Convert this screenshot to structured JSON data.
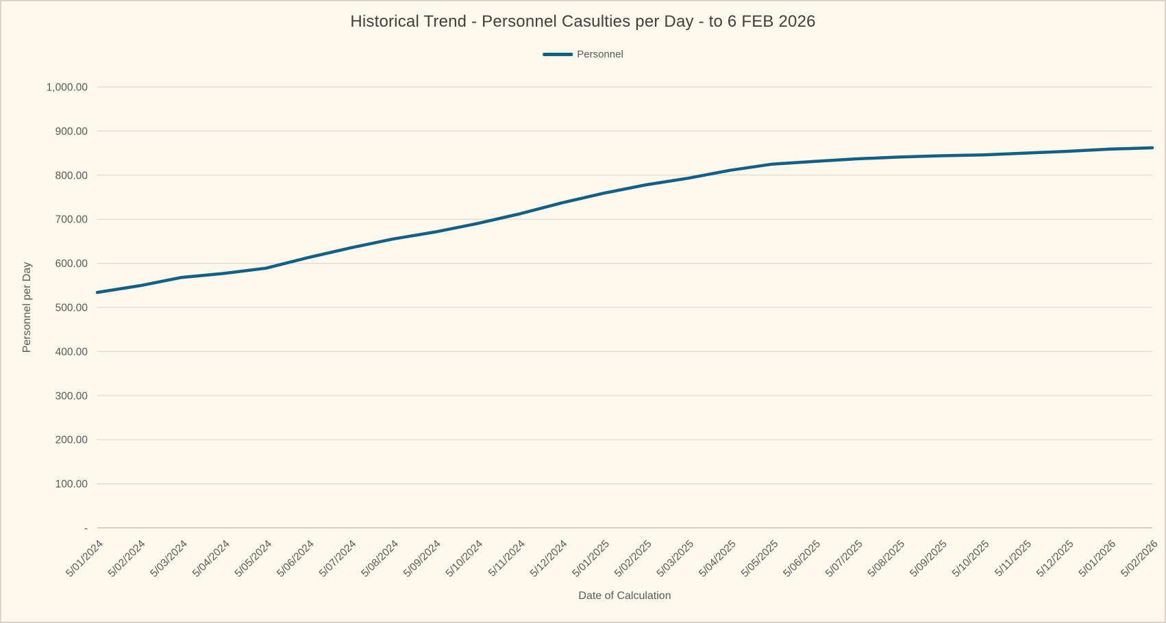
{
  "window": {
    "kind": "spreadsheet-chart"
  },
  "colors": {
    "line": "#156082",
    "background": "#fdf8ec",
    "frame_border": "#d8d4ca",
    "gridline": "#dbd8d1",
    "axis_line": "#c3bfb6",
    "tick_text": "#595959",
    "title_text": "#3f3f3f"
  },
  "chart_data": {
    "type": "line",
    "title": "Historical Trend - Personnel Casulties per Day - to 6 FEB 2026",
    "xlabel": "Date of Calculation",
    "ylabel": "Personnel per Day",
    "legend_position": "top",
    "grid": true,
    "ylim": [
      0,
      1000
    ],
    "y_ticks": [
      {
        "value": 0,
        "label": "-"
      },
      {
        "value": 100,
        "label": "100.00"
      },
      {
        "value": 200,
        "label": "200.00"
      },
      {
        "value": 300,
        "label": "300.00"
      },
      {
        "value": 400,
        "label": "400.00"
      },
      {
        "value": 500,
        "label": "500.00"
      },
      {
        "value": 600,
        "label": "600.00"
      },
      {
        "value": 700,
        "label": "700.00"
      },
      {
        "value": 800,
        "label": "800.00"
      },
      {
        "value": 900,
        "label": "900.00"
      },
      {
        "value": 1000,
        "label": "1,000.00"
      }
    ],
    "categories": [
      "5/01/2024",
      "5/02/2024",
      "5/03/2024",
      "5/04/2024",
      "5/05/2024",
      "5/06/2024",
      "5/07/2024",
      "5/08/2024",
      "5/09/2024",
      "5/10/2024",
      "5/11/2024",
      "5/12/2024",
      "5/01/2025",
      "5/02/2025",
      "5/03/2025",
      "5/04/2025",
      "5/05/2025",
      "5/06/2025",
      "5/07/2025",
      "5/08/2025",
      "5/09/2025",
      "5/10/2025",
      "5/11/2025",
      "5/12/2025",
      "5/01/2026",
      "5/02/2026"
    ],
    "series": [
      {
        "name": "Personnel",
        "color": "#156082",
        "values": [
          534,
          549,
          568,
          577,
          589,
          613,
          635,
          655,
          671,
          690,
          712,
          737,
          759,
          778,
          793,
          811,
          825,
          831,
          837,
          841,
          844,
          846,
          850,
          854,
          859,
          862
        ]
      }
    ]
  }
}
